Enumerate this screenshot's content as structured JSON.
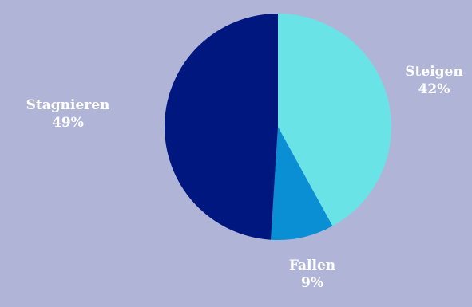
{
  "chart_data": {
    "type": "pie",
    "title": "",
    "slices": [
      {
        "label": "Steigen",
        "value": 42,
        "display": "42%",
        "color": "#6ae3e6"
      },
      {
        "label": "Fallen",
        "value": 9,
        "display": "9%",
        "color": "#0a8fd4"
      },
      {
        "label": "Stagnieren",
        "value": 49,
        "display": "49%",
        "color": "#00177f"
      }
    ],
    "start_angle_deg": 0,
    "direction": "clockwise",
    "legend": "none",
    "background": "#b0b5d8"
  }
}
